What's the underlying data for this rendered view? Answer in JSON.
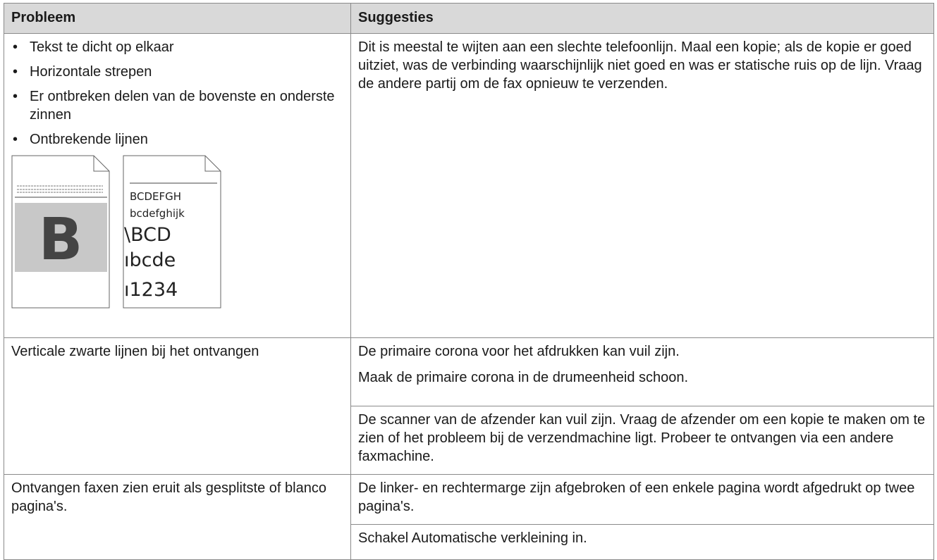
{
  "table": {
    "header": [
      "Probleem",
      "Suggesties"
    ],
    "rows": [
      {
        "problem": [
          "Tekst te dicht op elkaar",
          "Horizontale strepen",
          "Er ontbreken delen van de bovenste en onderste zinnen",
          "Ontbrekende lijnen"
        ],
        "illustration": {
          "letter": "B",
          "lines": [
            "BCDEFGH",
            "bcdefghijk",
            "\\BCD",
            "ıbcde",
            "ı1234"
          ]
        },
        "suggestions": [
          "Dit is meestal te wijten aan een slechte telefoonlijn. Maal een kopie; als de kopie er goed uitziet, was de verbinding waarschijnlijk niet goed en was er statische ruis op de lijn. Vraag de andere partij om de fax opnieuw te verzenden."
        ]
      },
      {
        "problem": "Verticale zwarte lijnen bij het ontvangen",
        "suggestions": [
          [
            "De primaire corona voor het afdrukken kan vuil zijn.",
            "Maak de primaire corona in de drumeenheid schoon."
          ],
          [
            "De scanner van de afzender kan vuil zijn. Vraag de afzender om een kopie te maken om te zien of het probleem bij de verzendmachine ligt. Probeer te ontvangen via een andere faxmachine."
          ]
        ]
      },
      {
        "problem": "Ontvangen faxen zien eruit als gesplitste of blanco pagina's.",
        "suggestions": [
          [
            "De linker- en rechtermarge zijn afgebroken of een enkele pagina wordt afgedrukt op twee pagina's."
          ],
          [
            "Schakel Automatische verkleining in."
          ]
        ]
      }
    ]
  }
}
